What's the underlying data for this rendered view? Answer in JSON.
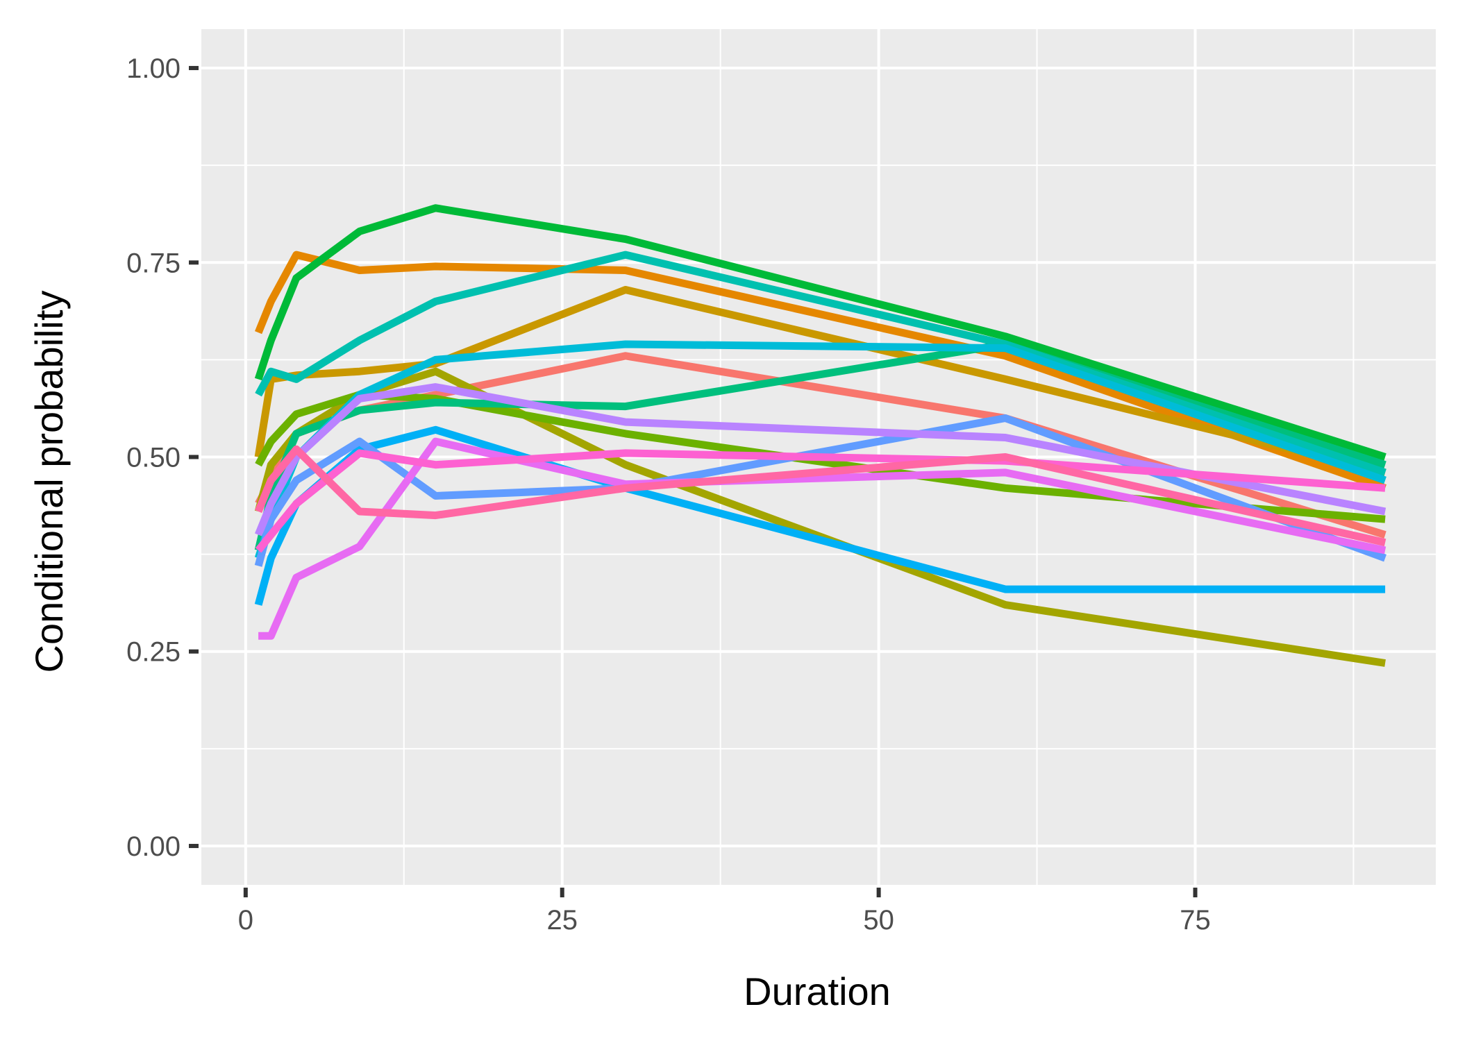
{
  "chart_data": {
    "type": "line",
    "title": "",
    "xlabel": "Duration",
    "ylabel": "Conditional probability",
    "xlim": [
      -3.5,
      94
    ],
    "ylim": [
      -0.05,
      1.05
    ],
    "xticks": [
      0,
      25,
      50,
      75
    ],
    "xtick_labels": [
      "0",
      "25",
      "50",
      "75"
    ],
    "yticks": [
      0,
      0.25,
      0.5,
      0.75,
      1.0
    ],
    "ytick_labels": [
      "0.00",
      "0.25",
      "0.50",
      "0.75",
      "1.00"
    ],
    "x_minor_ticks": [
      12.5,
      37.5,
      62.5,
      87.5
    ],
    "y_minor_ticks": [
      0.125,
      0.375,
      0.625,
      0.875
    ],
    "grid": true,
    "legend": "none",
    "panel_background": "#ebebeb",
    "grid_color": "#ffffff",
    "x": [
      1,
      2,
      4,
      9,
      15,
      30,
      60,
      90
    ],
    "series": [
      {
        "color": "#f8766d",
        "values": [
          0.44,
          0.47,
          0.53,
          0.56,
          0.58,
          0.63,
          0.55,
          0.4
        ]
      },
      {
        "color": "#e58700",
        "values": [
          0.66,
          0.7,
          0.76,
          0.74,
          0.745,
          0.74,
          0.63,
          0.46
        ]
      },
      {
        "color": "#c99800",
        "values": [
          0.5,
          0.6,
          0.605,
          0.61,
          0.62,
          0.715,
          0.6,
          0.48
        ]
      },
      {
        "color": "#a3a500",
        "values": [
          0.43,
          0.49,
          0.53,
          0.58,
          0.61,
          0.49,
          0.31,
          0.235
        ]
      },
      {
        "color": "#6bb100",
        "values": [
          0.49,
          0.52,
          0.555,
          0.58,
          0.575,
          0.53,
          0.46,
          0.42
        ]
      },
      {
        "color": "#00ba38",
        "values": [
          0.6,
          0.65,
          0.73,
          0.79,
          0.82,
          0.78,
          0.655,
          0.5
        ]
      },
      {
        "color": "#00bf7d",
        "values": [
          0.38,
          0.45,
          0.53,
          0.56,
          0.57,
          0.565,
          0.645,
          0.49
        ]
      },
      {
        "color": "#00c0af",
        "values": [
          0.58,
          0.61,
          0.6,
          0.65,
          0.7,
          0.76,
          0.645,
          0.48
        ]
      },
      {
        "color": "#00bcd8",
        "values": [
          0.37,
          0.42,
          0.5,
          0.58,
          0.625,
          0.645,
          0.64,
          0.47
        ]
      },
      {
        "color": "#00b0f6",
        "values": [
          0.31,
          0.37,
          0.44,
          0.51,
          0.535,
          0.46,
          0.33,
          0.33
        ]
      },
      {
        "color": "#619cff",
        "values": [
          0.36,
          0.42,
          0.47,
          0.52,
          0.45,
          0.46,
          0.55,
          0.37
        ]
      },
      {
        "color": "#b983ff",
        "values": [
          0.4,
          0.44,
          0.5,
          0.575,
          0.59,
          0.545,
          0.525,
          0.43
        ]
      },
      {
        "color": "#e76bf3",
        "values": [
          0.27,
          0.27,
          0.345,
          0.385,
          0.52,
          0.465,
          0.48,
          0.38
        ]
      },
      {
        "color": "#fd61d1",
        "values": [
          0.38,
          0.4,
          0.44,
          0.505,
          0.49,
          0.505,
          0.495,
          0.46
        ]
      },
      {
        "color": "#ff67a4",
        "values": [
          0.43,
          0.47,
          0.51,
          0.43,
          0.425,
          0.46,
          0.5,
          0.39
        ]
      }
    ]
  }
}
